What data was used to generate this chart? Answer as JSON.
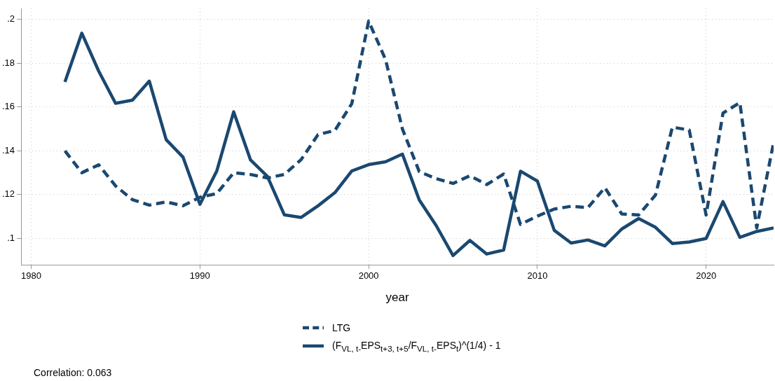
{
  "chart_data": {
    "type": "line",
    "xlabel": "year",
    "legend": "bottom",
    "grid": true,
    "marker": "none",
    "x": [
      1982,
      1983,
      1984,
      1985,
      1986,
      1987,
      1988,
      1989,
      1990,
      1991,
      1992,
      1993,
      1994,
      1995,
      1996,
      1997,
      1998,
      1999,
      2000,
      2001,
      2002,
      2003,
      2004,
      2005,
      2006,
      2007,
      2008,
      2009,
      2010,
      2011,
      2012,
      2013,
      2014,
      2015,
      2016,
      2017,
      2018,
      2019,
      2020,
      2021,
      2022,
      2023,
      2024
    ],
    "xlim": [
      1979.4,
      2024
    ],
    "xticks": [
      1980,
      1990,
      2000,
      2010,
      2020
    ],
    "ylim": [
      0.088,
      0.205
    ],
    "yticks": [
      {
        "value": 0.1,
        "label": ".1"
      },
      {
        "value": 0.12,
        "label": ".12"
      },
      {
        "value": 0.14,
        "label": ".14"
      },
      {
        "value": 0.16,
        "label": ".16"
      },
      {
        "value": 0.18,
        "label": ".18"
      },
      {
        "value": 0.2,
        "label": ".2"
      }
    ],
    "series": [
      {
        "name": "LTG",
        "color": "#1a4870",
        "line_style": "dashed",
        "values": [
          0.14,
          0.13,
          0.1336,
          0.124,
          0.1177,
          0.1152,
          0.1167,
          0.1149,
          0.1188,
          0.1205,
          0.13,
          0.1292,
          0.1276,
          0.1292,
          0.136,
          0.1474,
          0.1493,
          0.1615,
          0.1992,
          0.1817,
          0.15,
          0.1305,
          0.1273,
          0.1251,
          0.1286,
          0.1246,
          0.1294,
          0.1064,
          0.1102,
          0.1134,
          0.1147,
          0.1141,
          0.1232,
          0.1112,
          0.1107,
          0.1198,
          0.1508,
          0.1495,
          0.1107,
          0.1572,
          0.162,
          0.1048,
          0.1438
        ]
      },
      {
        "name": "(F$_{VL, t-}$EPS$_{t+3, t+5}$/F$_{VL, t-}$EPS$_{t}$)^(1/4) - 1",
        "color": "#1a4870",
        "line_style": "solid",
        "values": [
          0.1714,
          0.1937,
          0.1764,
          0.1617,
          0.1631,
          0.1718,
          0.1451,
          0.1371,
          0.1156,
          0.1308,
          0.1578,
          0.1358,
          0.1283,
          0.1108,
          0.1096,
          0.1149,
          0.1209,
          0.1308,
          0.1337,
          0.135,
          0.1385,
          0.1176,
          0.1059,
          0.0922,
          0.0991,
          0.0929,
          0.0947,
          0.1307,
          0.1262,
          0.1037,
          0.0979,
          0.0993,
          0.0966,
          0.1043,
          0.1091,
          0.1051,
          0.0977,
          0.0984,
          0.1,
          0.1168,
          0.1005,
          0.1032,
          0.1048
        ]
      }
    ],
    "annotations": [
      "Correlation: 0.063"
    ]
  }
}
